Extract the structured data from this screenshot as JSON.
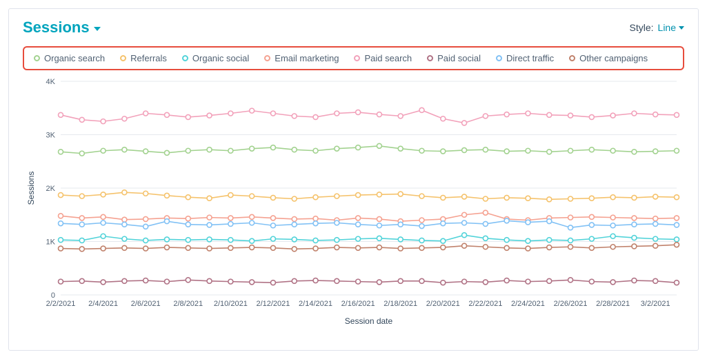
{
  "header": {
    "title": "Sessions",
    "style_label": "Style:",
    "style_value": "Line"
  },
  "chart": {
    "type": "line",
    "y_axis": {
      "title": "Sessions",
      "min": 0,
      "max": 4000,
      "tick_step": 1000,
      "tick_labels": [
        "0",
        "1K",
        "2K",
        "3K",
        "4K"
      ],
      "title_fontsize": 12,
      "tick_fontsize": 11,
      "grid_color": "#e5e8ed"
    },
    "x_axis": {
      "title": "Session date",
      "labels": [
        "2/2/2021",
        "2/4/2021",
        "2/6/2021",
        "2/8/2021",
        "2/10/2021",
        "2/12/2021",
        "2/14/2021",
        "2/16/2021",
        "2/18/2021",
        "2/20/2021",
        "2/22/2021",
        "2/24/2021",
        "2/26/2021",
        "2/28/2021",
        "3/2/2021"
      ],
      "ticks_every": 2,
      "point_count": 30,
      "title_fontsize": 12,
      "tick_fontsize": 11
    },
    "background_color": "#ffffff",
    "marker_radius": 3.5,
    "marker_fill": "#ffffff",
    "line_width": 1.6,
    "series": [
      {
        "key": "organic_search",
        "label": "Organic search",
        "color": "#a2d28f",
        "values": [
          2680,
          2650,
          2700,
          2720,
          2690,
          2660,
          2700,
          2720,
          2700,
          2740,
          2760,
          2720,
          2700,
          2740,
          2760,
          2790,
          2740,
          2700,
          2690,
          2710,
          2720,
          2690,
          2700,
          2680,
          2700,
          2720,
          2700,
          2680,
          2690,
          2700
        ]
      },
      {
        "key": "referrals",
        "label": "Referrals",
        "color": "#f5c26b",
        "values": [
          1870,
          1850,
          1880,
          1920,
          1900,
          1860,
          1830,
          1810,
          1870,
          1850,
          1820,
          1800,
          1830,
          1850,
          1870,
          1880,
          1890,
          1850,
          1820,
          1840,
          1800,
          1820,
          1810,
          1790,
          1800,
          1810,
          1830,
          1820,
          1840,
          1830
        ]
      },
      {
        "key": "organic_social",
        "label": "Organic social",
        "color": "#51d3d9",
        "values": [
          1030,
          1020,
          1100,
          1050,
          1020,
          1040,
          1030,
          1040,
          1030,
          1010,
          1050,
          1040,
          1020,
          1030,
          1050,
          1060,
          1040,
          1020,
          1010,
          1120,
          1060,
          1030,
          1010,
          1030,
          1020,
          1050,
          1100,
          1070,
          1050,
          1040
        ]
      },
      {
        "key": "email_marketing",
        "label": "Email marketing",
        "color": "#f5a190",
        "values": [
          1480,
          1440,
          1460,
          1410,
          1420,
          1440,
          1430,
          1450,
          1440,
          1460,
          1440,
          1420,
          1430,
          1400,
          1440,
          1420,
          1380,
          1400,
          1420,
          1500,
          1540,
          1420,
          1400,
          1440,
          1450,
          1460,
          1450,
          1440,
          1430,
          1440
        ]
      },
      {
        "key": "paid_search",
        "label": "Paid search",
        "color": "#f2a1ba",
        "values": [
          3370,
          3280,
          3250,
          3300,
          3400,
          3370,
          3330,
          3360,
          3400,
          3450,
          3400,
          3350,
          3330,
          3400,
          3420,
          3380,
          3350,
          3460,
          3300,
          3220,
          3350,
          3380,
          3400,
          3370,
          3360,
          3330,
          3360,
          3400,
          3380,
          3370
        ]
      },
      {
        "key": "paid_social",
        "label": "Paid social",
        "color": "#b07285",
        "values": [
          250,
          260,
          240,
          260,
          270,
          250,
          280,
          260,
          250,
          240,
          230,
          260,
          270,
          260,
          250,
          240,
          260,
          260,
          230,
          250,
          240,
          270,
          250,
          260,
          280,
          250,
          240,
          270,
          260,
          230
        ]
      },
      {
        "key": "direct_traffic",
        "label": "Direct traffic",
        "color": "#81c1f5",
        "values": [
          1340,
          1320,
          1350,
          1320,
          1280,
          1380,
          1320,
          1310,
          1330,
          1350,
          1300,
          1320,
          1340,
          1350,
          1320,
          1300,
          1320,
          1290,
          1340,
          1350,
          1330,
          1390,
          1360,
          1380,
          1260,
          1310,
          1300,
          1320,
          1330,
          1310
        ]
      },
      {
        "key": "other_campaigns",
        "label": "Other campaigns",
        "color": "#c0816b",
        "values": [
          870,
          860,
          870,
          880,
          870,
          890,
          880,
          870,
          880,
          890,
          880,
          860,
          870,
          890,
          880,
          890,
          870,
          880,
          890,
          920,
          900,
          880,
          870,
          890,
          900,
          880,
          900,
          910,
          920,
          940
        ]
      }
    ]
  }
}
